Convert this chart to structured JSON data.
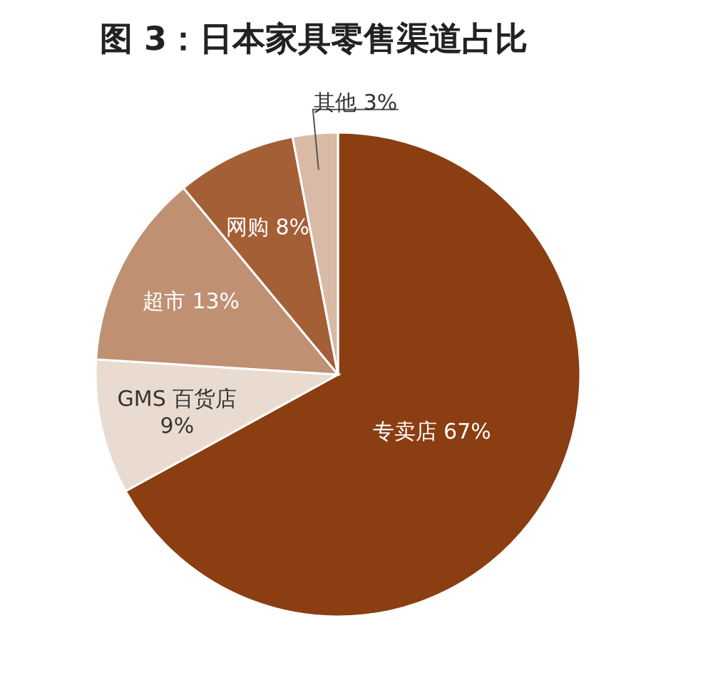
{
  "chart_data": {
    "type": "pie",
    "title": "图 3：日本家具零售渠道占比",
    "categories": [
      "专卖店",
      "GMS 百货店",
      "超市",
      "网购",
      "其他"
    ],
    "values": [
      67,
      9,
      13,
      8,
      3
    ],
    "colors": [
      "#8a3e12",
      "#eadbd0",
      "#c09073",
      "#a45f36",
      "#d8baa6"
    ],
    "value_labels": [
      "67%",
      "9%",
      "13%",
      "8%",
      "3%"
    ],
    "legend": false
  }
}
